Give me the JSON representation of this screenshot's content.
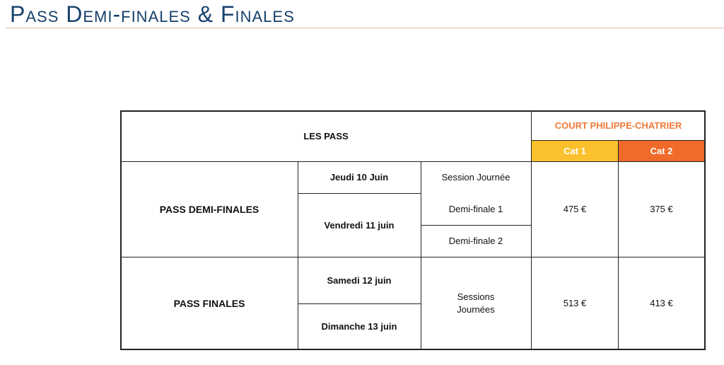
{
  "title": "Pass Demi-finales & Finales",
  "table": {
    "header": {
      "passes": "LES PASS",
      "court": "COURT PHILIPPE-CHATRIER",
      "cat1": "Cat 1",
      "cat2": "Cat 2"
    },
    "colors": {
      "court": "#ef7a3a",
      "cat1": "#fbc02d",
      "cat2": "#f06a2a"
    },
    "demi": {
      "name": "PASS DEMI-FINALES",
      "day1": "Jeudi 10 Juin",
      "day2": "Vendredi 11 juin",
      "s1": "Session Journée",
      "s2": "Demi-finale 1",
      "s3": "Demi-finale 2",
      "cat1": "475 €",
      "cat2": "375 €"
    },
    "finales": {
      "name": "PASS FINALES",
      "day1": "Samedi 12 juin",
      "day2": "Dimanche 13 juin",
      "session": "Sessions\nJournées",
      "cat1": "513 €",
      "cat2": "413 €"
    }
  }
}
